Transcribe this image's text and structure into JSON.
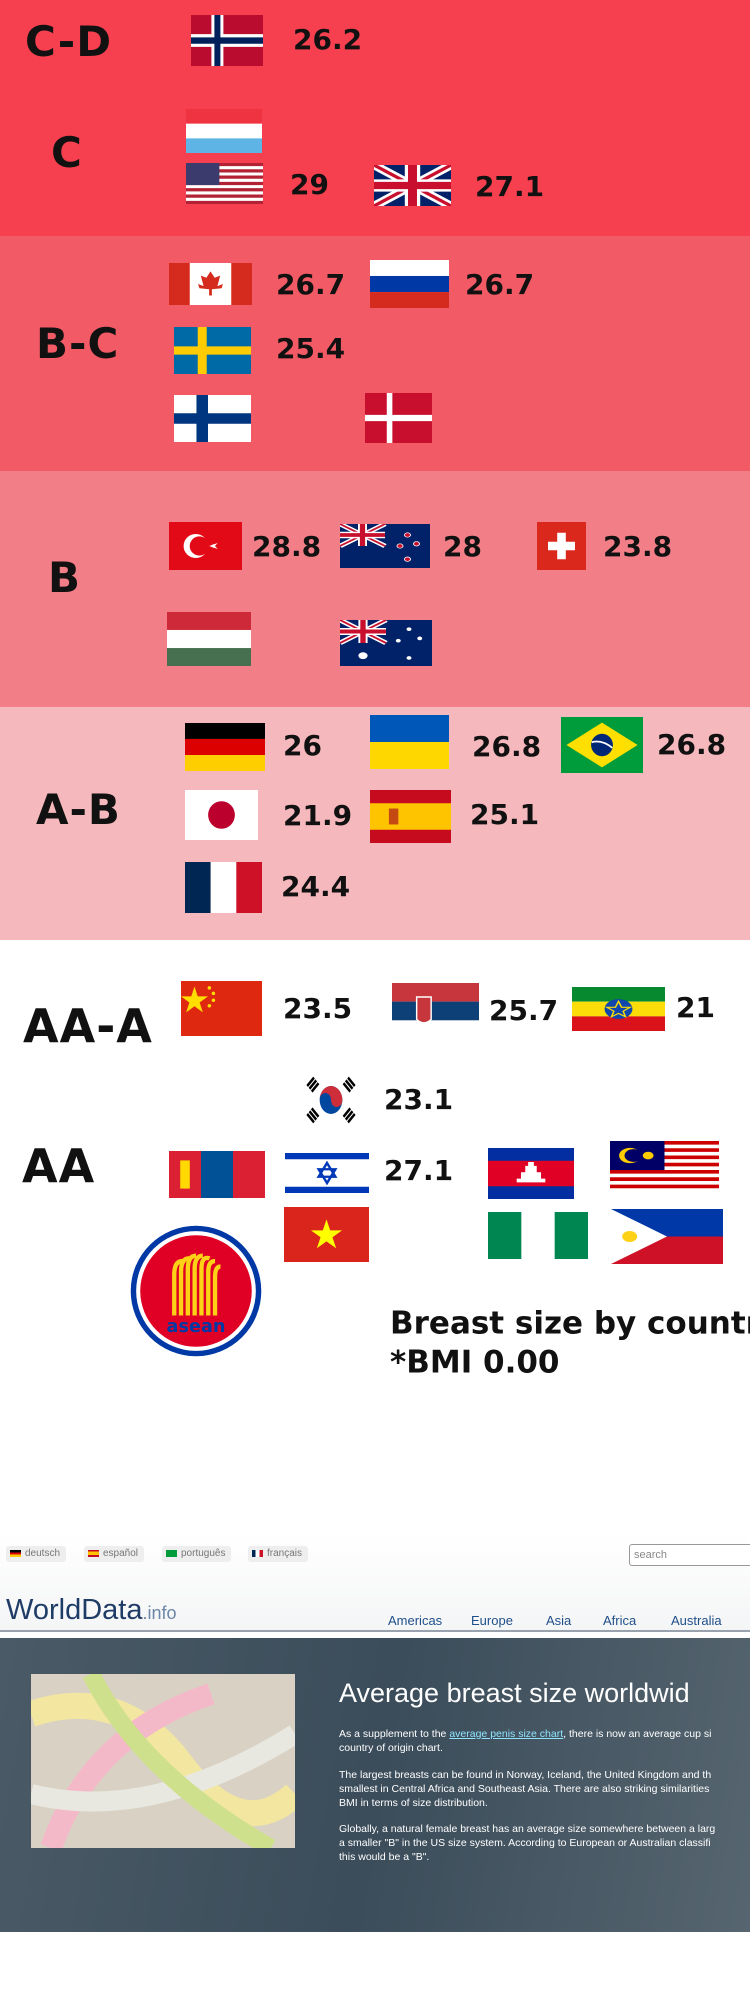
{
  "tiers": [
    {
      "label": "C-D",
      "values": [
        26.2
      ]
    },
    {
      "label": "C",
      "values": [
        29,
        27.1
      ]
    },
    {
      "label": "B-C",
      "values": [
        26.7,
        26.7,
        25.4
      ]
    },
    {
      "label": "B",
      "values": [
        28.8,
        28,
        23.8
      ]
    },
    {
      "label": "A-B",
      "values": [
        26,
        26.8,
        26.8,
        21.9,
        25.1,
        24.4
      ]
    },
    {
      "label": "AA-A",
      "values": [
        23.5,
        25.7,
        21,
        23.1
      ]
    },
    {
      "label": "AA",
      "values": [
        27.1
      ]
    }
  ],
  "caption": {
    "title": "Breast size by country",
    "note": "*BMI 0.00"
  },
  "website": {
    "languages": [
      "deutsch",
      "español",
      "português",
      "français"
    ],
    "search_placeholder": "search",
    "logo": "WorldData",
    "logo_suffix": ".info",
    "nav": [
      "Americas",
      "Europe",
      "Asia",
      "Africa",
      "Australia"
    ],
    "heading": "Average breast size worldwid",
    "intro": {
      "before": "As a supplement to the ",
      "link": "average penis size chart",
      "after": ", there is now an average cup si",
      "continuation": "country of origin chart."
    },
    "paragraphs": [
      [
        "The largest breasts can be found in Norway, Iceland, the United Kingdom and th",
        "smallest in Central Africa and Southeast Asia. There are also striking similarities",
        "BMI in terms of size distribution."
      ],
      [
        "Globally, a natural female breast has an average size somewhere between a larg",
        "a smaller \"B\" in the US size system. According to European or Australian classifi",
        "this would be a \"B\"."
      ]
    ]
  }
}
